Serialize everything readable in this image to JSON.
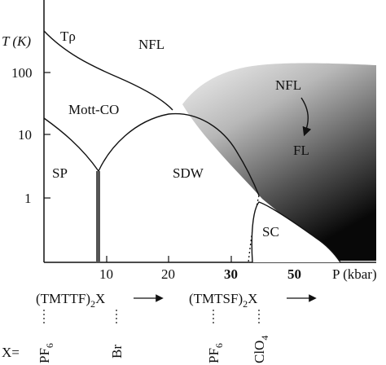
{
  "diagram": {
    "y_axis_label": "T (K)",
    "x_axis_label": "P (kbar)",
    "y_ticks": [
      "100",
      "10",
      "1"
    ],
    "x_ticks": [
      {
        "label": "10",
        "bold": false
      },
      {
        "label": "20",
        "bold": false
      },
      {
        "label": "30",
        "bold": true
      },
      {
        "label": "50",
        "bold": true
      }
    ],
    "regions": {
      "t_rho": "Tρ",
      "nfl_top": "NFL",
      "mott_co": "Mott-CO",
      "sp": "SP",
      "sdw": "SDW",
      "nfl_right": "NFL",
      "fl": "FL",
      "sc": "SC"
    },
    "compounds": {
      "tmttf": {
        "base": "(TMTTF)",
        "sub": "2",
        "suffix": "X"
      },
      "tmtsf": {
        "base": "(TMTSF)",
        "sub": "2",
        "suffix": "X"
      }
    },
    "x_prefix": "X=",
    "anions": [
      {
        "base": "PF",
        "sub": "6"
      },
      {
        "base": "Br",
        "sub": ""
      },
      {
        "base": "PF",
        "sub": "6"
      },
      {
        "base": "ClO",
        "sub": "4"
      }
    ],
    "colors": {
      "gradient_light": "#ececec",
      "gradient_dark": "#0a0a0a",
      "line": "#111111",
      "bar": "#555555"
    }
  }
}
